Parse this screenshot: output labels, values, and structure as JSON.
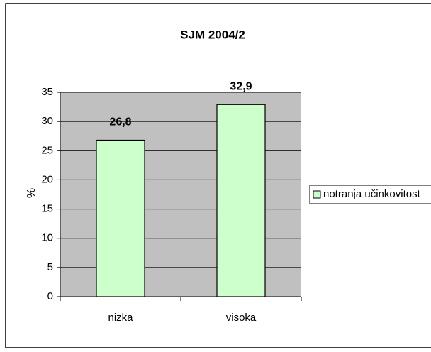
{
  "chart_data": {
    "type": "bar",
    "title": "SJM 2004/2",
    "y_label": "%",
    "categories": [
      "nizka",
      "visoka"
    ],
    "series": [
      {
        "name": "notranja učinkovitost",
        "color": "#ccffcc",
        "values": [
          26.8,
          32.9
        ],
        "value_labels": [
          "26,8",
          "32,9"
        ]
      }
    ],
    "ylim": [
      0,
      35
    ],
    "yticks": [
      0,
      5,
      10,
      15,
      20,
      25,
      30,
      35
    ],
    "grid": true,
    "legend": "right"
  }
}
